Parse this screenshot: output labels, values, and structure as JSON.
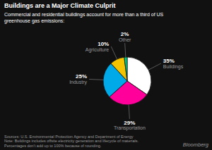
{
  "chart_data": {
    "type": "pie",
    "title": "Buildings are a Major Climate Culprit",
    "subtitle": "Commercial and residential buildings account for more than a third of US\ngreenhouse gas emissions:",
    "annotations": [
      "Sources: U.S. Environmental Protection Agency and Department of Energy\nNote: Buildings includes offsite electricity generation and lifecycle of materials.\nPercentages don’t add up to 100% because of rounding.",
      "Bloomberg"
    ],
    "categories": [
      "Buildings",
      "Transportation",
      "Industry",
      "Agriculture",
      "Other"
    ],
    "values": [
      35,
      29,
      25,
      10,
      2
    ],
    "value_labels": [
      "35%",
      "29%",
      "25%",
      "10%",
      "2%"
    ],
    "colors": [
      "#ffffff",
      "#ff009a",
      "#00aae8",
      "#f5c400",
      "#00cc88"
    ],
    "data_labels": true
  }
}
